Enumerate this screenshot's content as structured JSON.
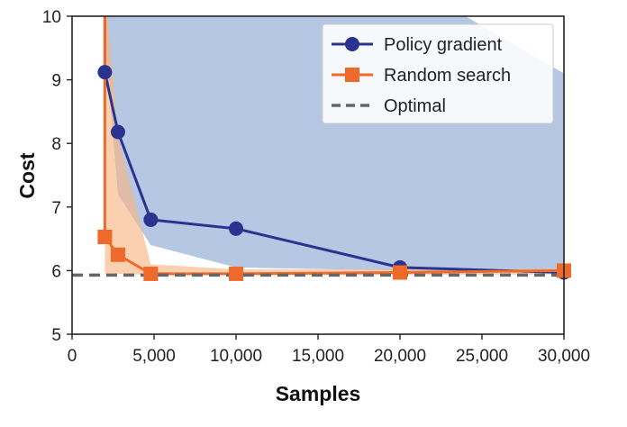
{
  "chart_data": {
    "type": "line",
    "xlabel": "Samples",
    "ylabel": "Cost",
    "xlim": [
      0,
      30000
    ],
    "ylim": [
      5,
      10
    ],
    "xticks": [
      0,
      5000,
      10000,
      15000,
      20000,
      25000,
      30000
    ],
    "xtick_labels": [
      "0",
      "5,000",
      "10,000",
      "15,000",
      "20,000",
      "25,000",
      "30,000"
    ],
    "yticks": [
      5,
      6,
      7,
      8,
      9,
      10
    ],
    "ytick_labels": [
      "5",
      "6",
      "7",
      "8",
      "9",
      "10"
    ],
    "grid": false,
    "legend_position": "top-right",
    "series": [
      {
        "name": "Policy gradient",
        "color": "#2a3490",
        "band_color": "#8ea9d3",
        "marker": "circle",
        "x": [
          2000,
          2800,
          4800,
          10000,
          20000,
          30000
        ],
        "y": [
          9.12,
          8.18,
          6.8,
          6.66,
          6.05,
          5.97
        ],
        "band_upper": [
          10.6,
          10.6,
          10.6,
          10.6,
          10.6,
          9.1
        ],
        "band_lower": [
          9.6,
          7.2,
          6.4,
          6.05,
          6.0,
          5.95
        ]
      },
      {
        "name": "Random search",
        "color": "#ee6a2a",
        "band_color": "#f7b787",
        "marker": "square",
        "x": [
          2000,
          2800,
          4800,
          10000,
          20000,
          30000
        ],
        "y": [
          6.53,
          6.25,
          5.95,
          5.95,
          5.97,
          6.0
        ],
        "band_upper": [
          10.6,
          8.1,
          6.1,
          6.02,
          6.02,
          6.03
        ],
        "band_lower": [
          5.95,
          5.95,
          5.93,
          5.93,
          5.93,
          5.94
        ]
      },
      {
        "name": "Optimal",
        "color": "#666666",
        "style": "dashed",
        "y_constant": 5.93
      }
    ]
  }
}
